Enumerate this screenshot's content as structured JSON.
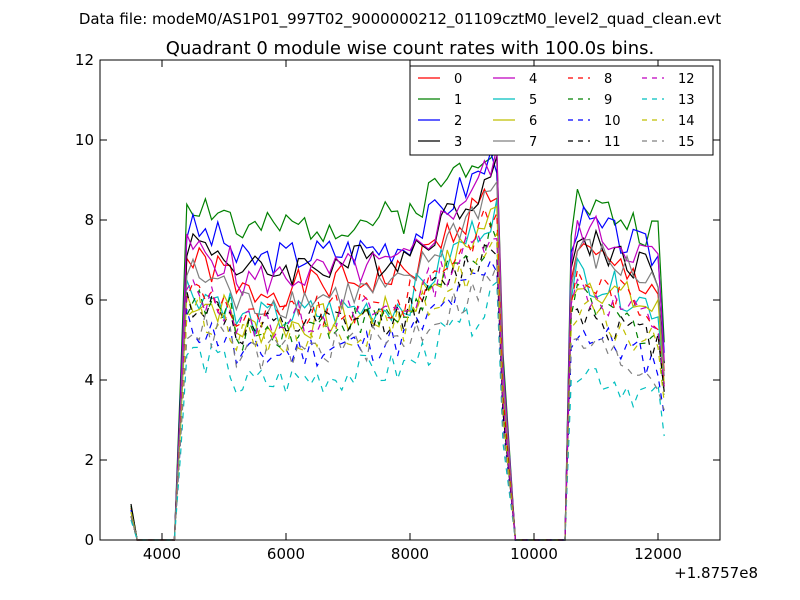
{
  "suptitle": "Data file: modeM0/AS1P01_997T02_9000000212_01109cztM0_level2_quad_clean.evt",
  "chart_data": {
    "type": "line",
    "title": "Quadrant 0 module wise count rates with 100.0s bins.",
    "xlabel": "",
    "ylabel": "",
    "x_offset_label": "+1.8757e8",
    "xlim": [
      3000,
      13000
    ],
    "ylim": [
      0,
      12
    ],
    "xticks": [
      4000,
      6000,
      8000,
      10000,
      12000
    ],
    "xtick_labels": [
      "4000",
      "6000",
      "8000",
      "10000",
      "12000"
    ],
    "yticks": [
      0,
      2,
      4,
      6,
      8,
      10,
      12
    ],
    "ytick_labels": [
      "0",
      "2",
      "4",
      "6",
      "8",
      "10",
      "12"
    ],
    "legend_position": "top-right",
    "segments": [
      {
        "x_start": 3500,
        "x_end": 3600,
        "kind": "pre"
      },
      {
        "x_start": 4200,
        "x_end": 9700,
        "kind": "seg1"
      },
      {
        "x_start": 10500,
        "x_end": 12100,
        "kind": "seg2"
      }
    ],
    "series": [
      {
        "name": "0",
        "color": "#ff0000",
        "dash": "solid",
        "start": 0.8,
        "levels": [
          6.6,
          6.5,
          7.2
        ]
      },
      {
        "name": "1",
        "color": "#008000",
        "dash": "solid",
        "start": 0.85,
        "levels": [
          8.1,
          7.6,
          8.5
        ]
      },
      {
        "name": "2",
        "color": "#0000ff",
        "dash": "solid",
        "start": 0.75,
        "levels": [
          7.4,
          7.2,
          8.0
        ]
      },
      {
        "name": "3",
        "color": "#000000",
        "dash": "solid",
        "start": 0.9,
        "levels": [
          7.1,
          6.8,
          7.6
        ]
      },
      {
        "name": "4",
        "color": "#bf00bf",
        "dash": "solid",
        "start": 0.7,
        "levels": [
          6.9,
          6.9,
          7.9
        ]
      },
      {
        "name": "5",
        "color": "#00bfbf",
        "dash": "solid",
        "start": 0.7,
        "levels": [
          5.9,
          6.0,
          6.7
        ]
      },
      {
        "name": "6",
        "color": "#bfbf00",
        "dash": "solid",
        "start": 0.7,
        "levels": [
          5.7,
          6.0,
          6.6
        ]
      },
      {
        "name": "7",
        "color": "#808080",
        "dash": "solid",
        "start": 0.6,
        "levels": [
          6.3,
          6.3,
          7.3
        ]
      },
      {
        "name": "8",
        "color": "#ff0000",
        "dash": "dashed",
        "start": 0.6,
        "levels": [
          5.9,
          5.9,
          6.6
        ]
      },
      {
        "name": "9",
        "color": "#008000",
        "dash": "dashed",
        "start": 0.6,
        "levels": [
          5.6,
          5.6,
          6.0
        ]
      },
      {
        "name": "10",
        "color": "#0000ff",
        "dash": "dashed",
        "start": 0.6,
        "levels": [
          5.0,
          4.8,
          5.3
        ]
      },
      {
        "name": "11",
        "color": "#000000",
        "dash": "dashed",
        "start": 0.6,
        "levels": [
          5.6,
          5.7,
          5.8
        ]
      },
      {
        "name": "12",
        "color": "#bf00bf",
        "dash": "dashed",
        "start": 0.6,
        "levels": [
          5.8,
          5.9,
          6.3
        ]
      },
      {
        "name": "13",
        "color": "#00bfbf",
        "dash": "dashed",
        "start": 0.5,
        "levels": [
          4.3,
          4.0,
          4.4
        ]
      },
      {
        "name": "14",
        "color": "#bfbf00",
        "dash": "dashed",
        "start": 0.6,
        "levels": [
          5.4,
          5.3,
          5.7
        ]
      },
      {
        "name": "15",
        "color": "#808080",
        "dash": "dashed",
        "start": 0.6,
        "levels": [
          5.0,
          5.0,
          5.0
        ]
      }
    ]
  }
}
